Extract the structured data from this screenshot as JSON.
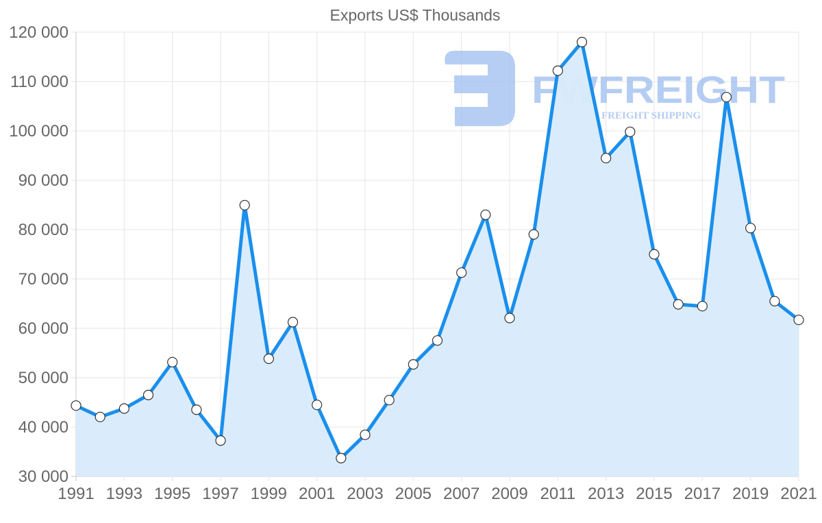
{
  "chart_data": {
    "type": "line",
    "title": "Exports US$ Thousands",
    "xlabel": "",
    "ylabel": "",
    "x": [
      1991,
      1992,
      1993,
      1994,
      1995,
      1996,
      1997,
      1998,
      1999,
      2000,
      2001,
      2002,
      2003,
      2004,
      2005,
      2006,
      2007,
      2008,
      2009,
      2010,
      2011,
      2012,
      2013,
      2014,
      2015,
      2016,
      2017,
      2018,
      2019,
      2020,
      2021
    ],
    "series": [
      {
        "name": "Exports US$ Thousands",
        "values": [
          44350,
          42040,
          43750,
          46490,
          53150,
          43510,
          37260,
          84960,
          53840,
          61250,
          44490,
          33700,
          38430,
          45460,
          52690,
          57540,
          71290,
          83010,
          62080,
          79030,
          112200,
          118000,
          94490,
          99820,
          75000,
          64860,
          64490,
          106850,
          80320,
          65510,
          61710
        ]
      }
    ],
    "ylim": [
      30000,
      120000
    ],
    "xlim": [
      1991,
      2021
    ],
    "y_ticks": [
      30000,
      40000,
      50000,
      60000,
      70000,
      80000,
      90000,
      100000,
      110000,
      120000
    ],
    "y_tick_labels": [
      "30 000",
      "40 000",
      "50 000",
      "60 000",
      "70 000",
      "80 000",
      "90 000",
      "100 000",
      "110 000",
      "120 000"
    ],
    "x_tick_labels": [
      "1991",
      "1993",
      "1995",
      "1997",
      "1999",
      "2001",
      "2003",
      "2005",
      "2007",
      "2009",
      "2011",
      "2013",
      "2015",
      "2017",
      "2019",
      "2021"
    ],
    "grid": true,
    "legend": "none",
    "filled_area": true,
    "colors": {
      "line": "#1a8fec",
      "fill": "#d8ebfc",
      "point_fill": "#ffffff",
      "point_stroke": "#333333"
    }
  },
  "watermark": {
    "brand": "FWFREIGHT",
    "tagline": "FREIGHT SHIPPING",
    "color": "#9dbdf0"
  }
}
